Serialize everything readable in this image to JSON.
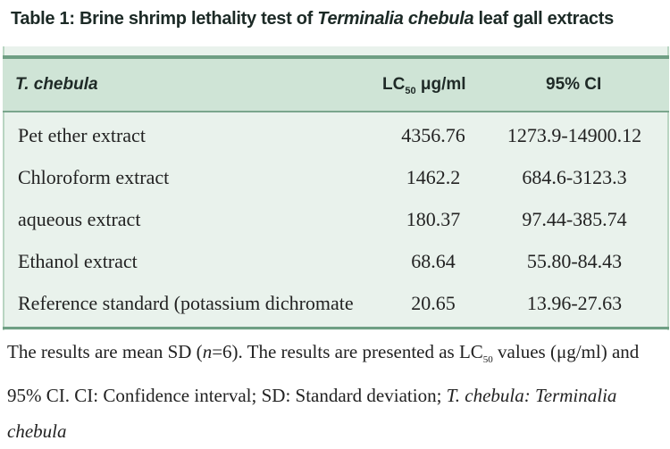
{
  "title": {
    "lead": "Table 1: Brine shrimp lethality test of ",
    "species": "Terminalia chebula",
    "tail": " leaf gall extracts"
  },
  "table": {
    "header": {
      "name": "T. chebula",
      "lc": "LC",
      "lc_sub": "50",
      "lc_unit": " μg/ml",
      "ci": "95% CI"
    },
    "rows": [
      [
        "Pet ether extract",
        "4356.76",
        "1273.9-14900.12"
      ],
      [
        "Chloroform extract",
        "1462.2",
        "684.6-3123.3"
      ],
      [
        "aqueous extract",
        "180.37",
        "97.44-385.74"
      ],
      [
        "Ethanol extract",
        "68.64",
        "55.80-84.43"
      ],
      [
        "Reference standard (potassium dichromate",
        "20.65",
        "13.96-27.63"
      ]
    ]
  },
  "footnote": {
    "p1": "The results are mean SD (",
    "n": "n",
    "p2": "=6). The results are presented as LC",
    "sub": "50",
    "p3": " values (μg/ml) and 95% CI. CI: Confidence interval; SD: Standard deviation; ",
    "abbr": "T. chebula: Terminalia chebula"
  }
}
